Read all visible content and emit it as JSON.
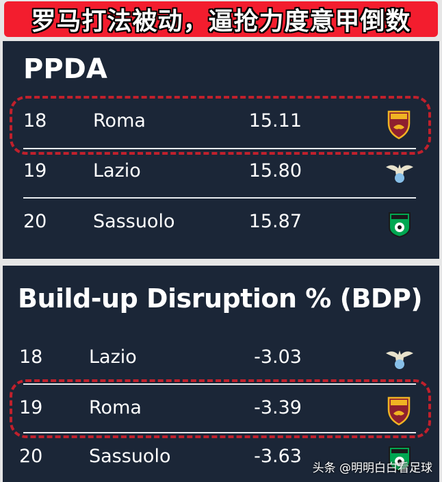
{
  "banner": {
    "text": "罗马打法被动，逼抢力度意甲倒数"
  },
  "ppda": {
    "title": "PPDA",
    "rows": [
      {
        "rank": "18",
        "team": "Roma",
        "value": "15.11",
        "logo": "roma-crest-icon"
      },
      {
        "rank": "19",
        "team": "Lazio",
        "value": "15.80",
        "logo": "lazio-eagle-icon"
      },
      {
        "rank": "20",
        "team": "Sassuolo",
        "value": "15.87",
        "logo": "sassuolo-crest-icon"
      }
    ]
  },
  "bdp": {
    "title": "Build-up Disruption % (BDP)",
    "rows": [
      {
        "rank": "18",
        "team": "Lazio",
        "value": "-3.03",
        "logo": "lazio-eagle-icon"
      },
      {
        "rank": "19",
        "team": "Roma",
        "value": "-3.39",
        "logo": "roma-crest-icon"
      },
      {
        "rank": "20",
        "team": "Sassuolo",
        "value": "-3.63",
        "logo": "sassuolo-crest-icon"
      }
    ]
  },
  "watermark": {
    "text": "头条 @明明白白看足球"
  },
  "colors": {
    "banner_red": "#f31d2e",
    "panel_bg": "#1b2637",
    "highlight_red": "#c0202c",
    "roma_gold": "#f0b323",
    "roma_red": "#8e1f2f",
    "lazio_blue": "#87bfe8",
    "sassuolo_green": "#00a752"
  }
}
